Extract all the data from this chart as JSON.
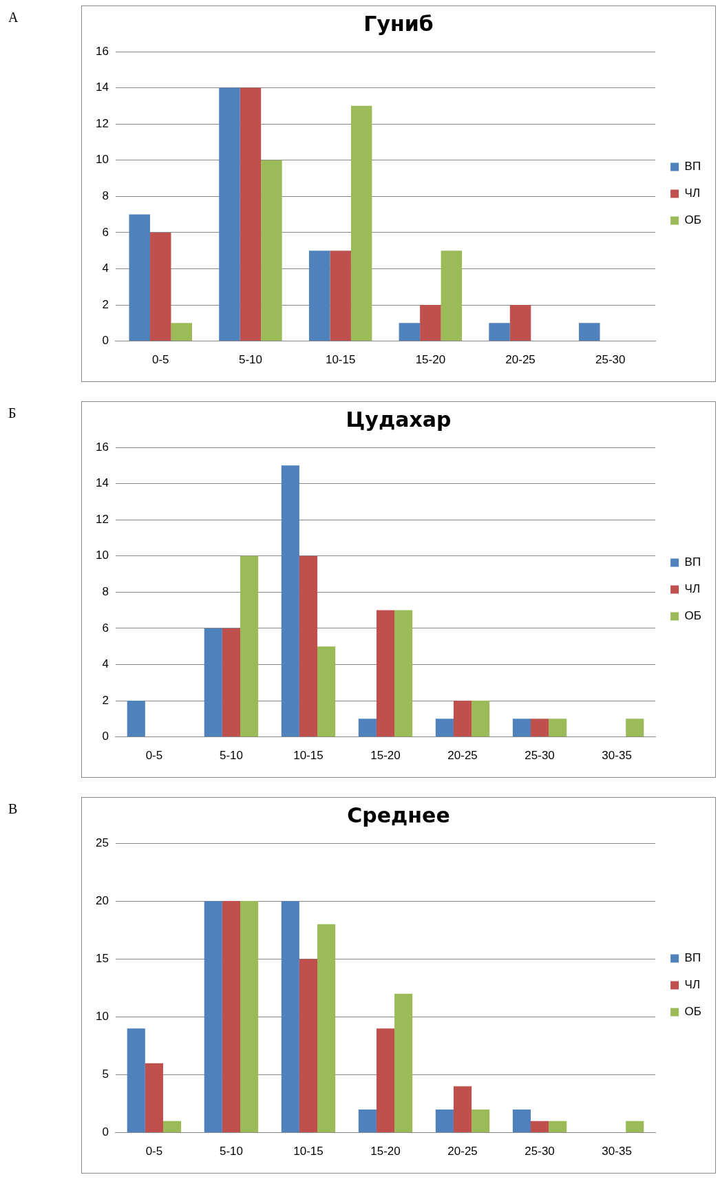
{
  "chart_data": [
    {
      "type": "bar",
      "title": "Гуниб",
      "annotations": [
        "А"
      ],
      "categories": [
        "0-5",
        "5-10",
        "10-15",
        "15-20",
        "20-25",
        "25-30"
      ],
      "series": [
        {
          "name": "ВП",
          "color": "#4f81bd",
          "values": [
            7,
            14,
            5,
            1,
            1,
            1
          ]
        },
        {
          "name": "ЧЛ",
          "color": "#c0504d",
          "values": [
            6,
            14,
            5,
            2,
            2,
            0
          ]
        },
        {
          "name": "ОБ",
          "color": "#9bbb59",
          "values": [
            1,
            10,
            13,
            5,
            0,
            0
          ]
        }
      ],
      "ylim": [
        0,
        16
      ],
      "yticks": [
        0,
        2,
        4,
        6,
        8,
        10,
        12,
        14,
        16
      ],
      "grid": "y",
      "legend": "right"
    },
    {
      "type": "bar",
      "title": "Цудахар",
      "annotations": [
        "Б"
      ],
      "categories": [
        "0-5",
        "5-10",
        "10-15",
        "15-20",
        "20-25",
        "25-30",
        "30-35"
      ],
      "series": [
        {
          "name": "ВП",
          "color": "#4f81bd",
          "values": [
            2,
            6,
            15,
            1,
            1,
            1,
            0
          ]
        },
        {
          "name": "ЧЛ",
          "color": "#c0504d",
          "values": [
            0,
            6,
            10,
            7,
            2,
            1,
            0
          ]
        },
        {
          "name": "ОБ",
          "color": "#9bbb59",
          "values": [
            0,
            10,
            5,
            7,
            2,
            1,
            1
          ]
        }
      ],
      "ylim": [
        0,
        16
      ],
      "yticks": [
        0,
        2,
        4,
        6,
        8,
        10,
        12,
        14,
        16
      ],
      "grid": "y",
      "legend": "right"
    },
    {
      "type": "bar",
      "title": "Среднее",
      "annotations": [
        "В"
      ],
      "categories": [
        "0-5",
        "5-10",
        "10-15",
        "15-20",
        "20-25",
        "25-30",
        "30-35"
      ],
      "series": [
        {
          "name": "ВП",
          "color": "#4f81bd",
          "values": [
            9,
            20,
            20,
            2,
            2,
            2,
            0
          ]
        },
        {
          "name": "ЧЛ",
          "color": "#c0504d",
          "values": [
            6,
            20,
            15,
            9,
            4,
            1,
            0
          ]
        },
        {
          "name": "ОБ",
          "color": "#9bbb59",
          "values": [
            1,
            20,
            18,
            12,
            2,
            1,
            1
          ]
        }
      ],
      "ylim": [
        0,
        25
      ],
      "yticks": [
        0,
        5,
        10,
        15,
        20,
        25
      ],
      "grid": "y",
      "legend": "right"
    }
  ]
}
